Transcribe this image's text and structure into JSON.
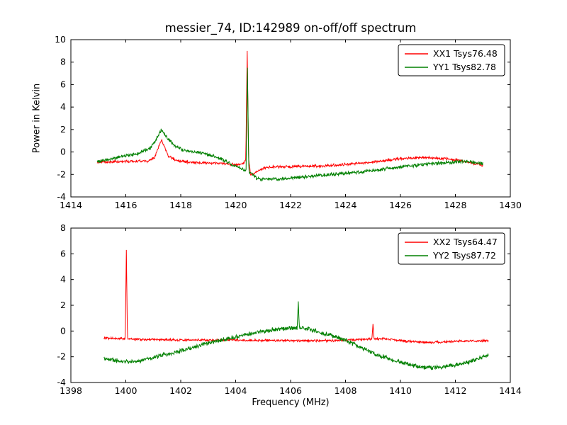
{
  "title": "messier_74, ID:142989 on-off/off spectrum",
  "colors": {
    "red": "#ff0000",
    "green": "#008000",
    "axis": "#000000",
    "background": "#ffffff"
  },
  "chart_data": [
    {
      "type": "line",
      "title": "",
      "xlabel": "",
      "ylabel": "Power in Kelvin",
      "xlim": [
        1414,
        1430
      ],
      "ylim": [
        -4,
        10
      ],
      "xticks": [
        1414,
        1416,
        1418,
        1420,
        1422,
        1424,
        1426,
        1428,
        1430
      ],
      "yticks": [
        -4,
        -2,
        0,
        2,
        4,
        6,
        8,
        10
      ],
      "grid": false,
      "legend_position": "upper right",
      "series": [
        {
          "name": "XX1 Tsys76.48",
          "color": "#ff0000",
          "x_start": 1414.95,
          "x_end": 1429.0,
          "n_points": 1000,
          "noise_amp": 0.09,
          "seed": 11,
          "baseline": [
            [
              1414.95,
              -0.9
            ],
            [
              1416.0,
              -0.85
            ],
            [
              1416.8,
              -0.8
            ],
            [
              1417.05,
              -0.5
            ],
            [
              1417.3,
              1.1
            ],
            [
              1417.55,
              -0.4
            ],
            [
              1417.9,
              -0.8
            ],
            [
              1418.6,
              -0.95
            ],
            [
              1419.5,
              -1.0
            ],
            [
              1420.0,
              -1.15
            ],
            [
              1420.3,
              -1.0
            ],
            [
              1420.45,
              -0.2
            ],
            [
              1420.55,
              -2.1
            ],
            [
              1420.75,
              -1.8
            ],
            [
              1421.1,
              -1.35
            ],
            [
              1422.0,
              -1.3
            ],
            [
              1423.0,
              -1.25
            ],
            [
              1424.0,
              -1.1
            ],
            [
              1425.0,
              -0.9
            ],
            [
              1426.0,
              -0.6
            ],
            [
              1426.8,
              -0.5
            ],
            [
              1427.6,
              -0.6
            ],
            [
              1428.4,
              -0.85
            ],
            [
              1429.0,
              -1.2
            ]
          ],
          "spikes": [
            {
              "x": 1420.42,
              "y": 9.0,
              "w": 0.05
            }
          ]
        },
        {
          "name": "YY1 Tsys82.78",
          "color": "#008000",
          "x_start": 1414.95,
          "x_end": 1429.0,
          "n_points": 1000,
          "noise_amp": 0.12,
          "seed": 22,
          "baseline": [
            [
              1414.95,
              -0.85
            ],
            [
              1415.5,
              -0.6
            ],
            [
              1416.0,
              -0.35
            ],
            [
              1416.5,
              -0.1
            ],
            [
              1416.9,
              0.35
            ],
            [
              1417.1,
              1.1
            ],
            [
              1417.3,
              2.0
            ],
            [
              1417.5,
              1.25
            ],
            [
              1417.8,
              0.5
            ],
            [
              1418.2,
              0.1
            ],
            [
              1418.8,
              -0.1
            ],
            [
              1419.3,
              -0.45
            ],
            [
              1419.8,
              -1.0
            ],
            [
              1420.2,
              -1.5
            ],
            [
              1420.35,
              -1.6
            ],
            [
              1420.5,
              -1.8
            ],
            [
              1420.8,
              -2.4
            ],
            [
              1421.5,
              -2.45
            ],
            [
              1422.5,
              -2.2
            ],
            [
              1423.5,
              -2.0
            ],
            [
              1424.5,
              -1.8
            ],
            [
              1425.5,
              -1.5
            ],
            [
              1426.5,
              -1.2
            ],
            [
              1427.5,
              -1.0
            ],
            [
              1428.3,
              -0.85
            ],
            [
              1429.0,
              -1.0
            ]
          ],
          "spikes": [
            {
              "x": 1420.43,
              "y": 7.5,
              "w": 0.05
            }
          ]
        }
      ]
    },
    {
      "type": "line",
      "title": "",
      "xlabel": "Frequency (MHz)",
      "ylabel": "",
      "xlim": [
        1398,
        1414
      ],
      "ylim": [
        -4,
        8
      ],
      "xticks": [
        1398,
        1400,
        1402,
        1404,
        1406,
        1408,
        1410,
        1412,
        1414
      ],
      "yticks": [
        -4,
        -2,
        0,
        2,
        4,
        6,
        8
      ],
      "grid": false,
      "legend_position": "upper right",
      "series": [
        {
          "name": "XX2 Tsys64.47",
          "color": "#ff0000",
          "x_start": 1399.2,
          "x_end": 1413.2,
          "n_points": 1000,
          "noise_amp": 0.07,
          "seed": 33,
          "baseline": [
            [
              1399.2,
              -0.55
            ],
            [
              1400.5,
              -0.65
            ],
            [
              1402.0,
              -0.7
            ],
            [
              1404.0,
              -0.7
            ],
            [
              1406.0,
              -0.75
            ],
            [
              1407.5,
              -0.75
            ],
            [
              1408.6,
              -0.65
            ],
            [
              1409.4,
              -0.6
            ],
            [
              1410.2,
              -0.8
            ],
            [
              1411.0,
              -0.9
            ],
            [
              1412.0,
              -0.8
            ],
            [
              1413.2,
              -0.75
            ]
          ],
          "spikes": [
            {
              "x": 1400.02,
              "y": 6.3,
              "w": 0.04
            },
            {
              "x": 1409.0,
              "y": 0.55,
              "w": 0.04
            }
          ]
        },
        {
          "name": "YY2 Tsys87.72",
          "color": "#008000",
          "x_start": 1399.2,
          "x_end": 1413.2,
          "n_points": 1000,
          "noise_amp": 0.13,
          "seed": 44,
          "baseline": [
            [
              1399.2,
              -2.15
            ],
            [
              1399.7,
              -2.3
            ],
            [
              1400.1,
              -2.4
            ],
            [
              1400.5,
              -2.3
            ],
            [
              1401.0,
              -2.05
            ],
            [
              1402.0,
              -1.55
            ],
            [
              1403.0,
              -0.95
            ],
            [
              1404.0,
              -0.45
            ],
            [
              1404.8,
              -0.1
            ],
            [
              1405.5,
              0.15
            ],
            [
              1406.1,
              0.25
            ],
            [
              1406.6,
              0.15
            ],
            [
              1407.1,
              -0.1
            ],
            [
              1407.9,
              -0.65
            ],
            [
              1408.6,
              -1.3
            ],
            [
              1409.3,
              -1.95
            ],
            [
              1410.1,
              -2.5
            ],
            [
              1410.9,
              -2.85
            ],
            [
              1411.6,
              -2.8
            ],
            [
              1412.4,
              -2.45
            ],
            [
              1413.2,
              -1.85
            ]
          ],
          "spikes": [
            {
              "x": 1406.28,
              "y": 2.3,
              "w": 0.04
            }
          ]
        }
      ]
    }
  ]
}
